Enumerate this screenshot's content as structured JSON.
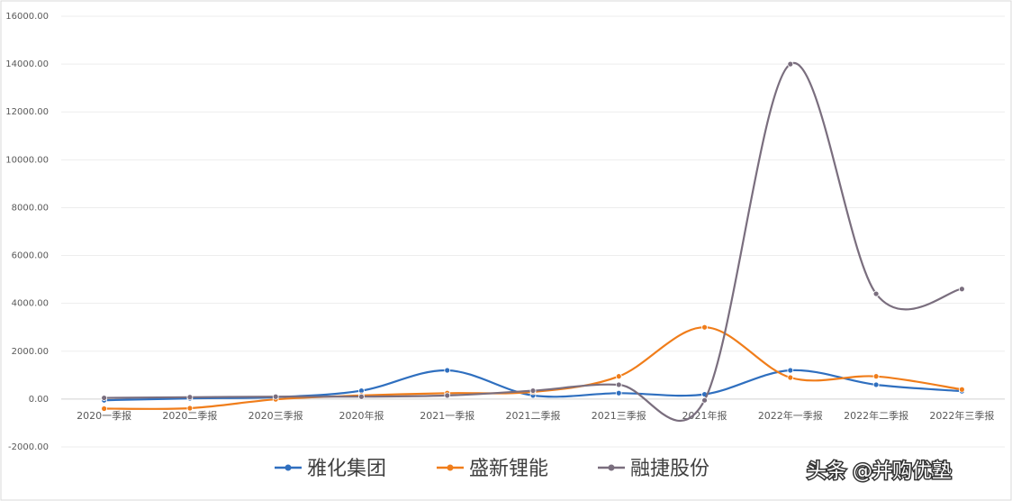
{
  "chart_data": {
    "type": "line",
    "categories": [
      "2020一季报",
      "2020二季报",
      "2020三季报",
      "2020年报",
      "2021一季报",
      "2021二季报",
      "2021三季报",
      "2021年报",
      "2022年一季报",
      "2022年二季报",
      "2022年三季报"
    ],
    "ylim": [
      -2000,
      16000
    ],
    "yticks": [
      "-2000.00",
      "0.00",
      "2000.00",
      "4000.00",
      "6000.00",
      "8000.00",
      "10000.00",
      "12000.00",
      "14000.00",
      "16000.00"
    ],
    "grid": true,
    "legend_position": "bottom",
    "series": [
      {
        "name": "雅化集团",
        "color": "#2f6fbf",
        "values": [
          -50,
          30,
          80,
          350,
          1200,
          150,
          250,
          200,
          1200,
          600,
          330
        ]
      },
      {
        "name": "盛新锂能",
        "color": "#f07d1a",
        "values": [
          -400,
          -380,
          -10,
          150,
          250,
          300,
          950,
          3000,
          900,
          950,
          400
        ]
      },
      {
        "name": "融捷股份",
        "color": "#7a6e7e",
        "values": [
          50,
          80,
          100,
          100,
          150,
          350,
          600,
          -50,
          14000,
          4400,
          4600
        ]
      }
    ]
  },
  "watermark": "头条 @并购优塾"
}
